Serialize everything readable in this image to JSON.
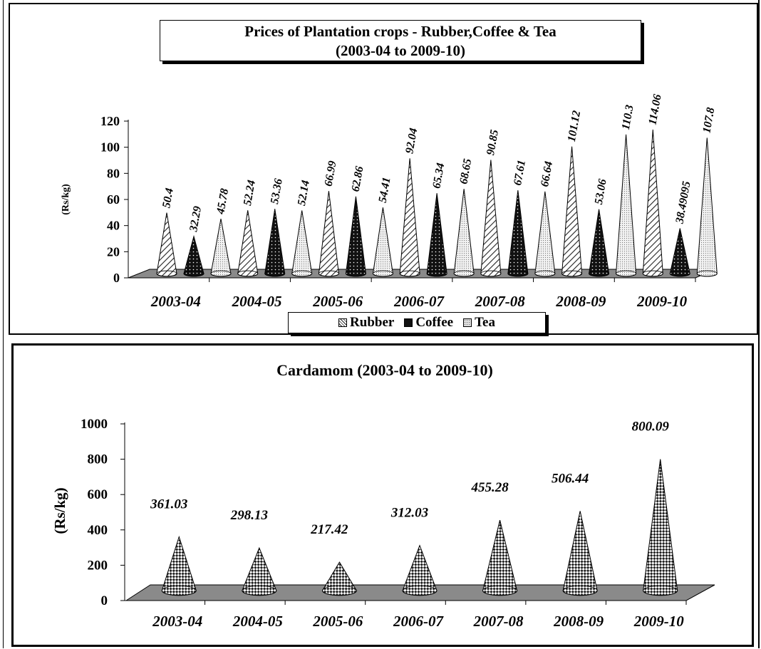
{
  "chart_data": [
    {
      "type": "bar",
      "title_line1": "Prices of Plantation crops - Rubber,Coffee & Tea",
      "title_line2": "(2003-04 to 2009-10)",
      "ylabel": "(Rs/kg)",
      "ylim": [
        0,
        120
      ],
      "yticks": [
        "0",
        "20",
        "40",
        "60",
        "80",
        "100",
        "120"
      ],
      "categories": [
        "2003-04",
        "2004-05",
        "2005-06",
        "2006-07",
        "2007-08",
        "2008-09",
        "2009-10"
      ],
      "series": [
        {
          "name": "Rubber",
          "values": [
            50.4,
            52.24,
            66.99,
            92.04,
            90.85,
            101.12,
            114.06
          ],
          "labels": [
            "50.4",
            "52.24",
            "66.99",
            "92.04",
            "90.85",
            "101.12",
            "114.06"
          ]
        },
        {
          "name": "Coffee",
          "values": [
            32.29,
            53.36,
            62.86,
            65.34,
            67.61,
            53.06,
            38.49095
          ],
          "labels": [
            "32.29",
            "53.36",
            "62.86",
            "65.34",
            "67.61",
            "53.06",
            "38.49095"
          ]
        },
        {
          "name": "Tea",
          "values": [
            45.78,
            52.14,
            54.41,
            68.65,
            66.64,
            110.3,
            107.8
          ],
          "labels": [
            "45.78",
            "52.14",
            "54.41",
            "68.65",
            "66.64",
            "110.3",
            "107.8"
          ]
        }
      ],
      "legend": "bottom",
      "style": "3d-cone"
    },
    {
      "type": "bar",
      "title": "Cardamom (2003-04 to 2009-10)",
      "ylabel": "(Rs/kg)",
      "ylim": [
        0,
        1000
      ],
      "yticks": [
        "0",
        "200",
        "400",
        "600",
        "800",
        "1000"
      ],
      "categories": [
        "2003-04",
        "2004-05",
        "2005-06",
        "2006-07",
        "2007-08",
        "2008-09",
        "2009-10"
      ],
      "values": [
        361.03,
        298.13,
        217.42,
        312.03,
        455.28,
        506.44,
        800.09
      ],
      "labels": [
        "361.03",
        "298.13",
        "217.42",
        "312.03",
        "455.28",
        "506.44",
        "800.09"
      ],
      "style": "3d-cone"
    }
  ]
}
